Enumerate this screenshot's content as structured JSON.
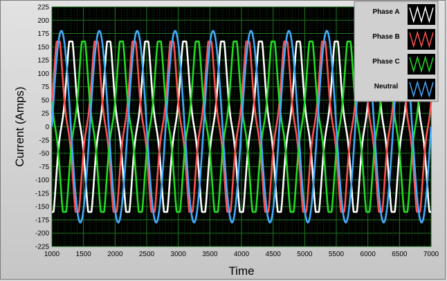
{
  "chart_data": {
    "type": "line",
    "title": "",
    "xlabel": "Time",
    "ylabel": "Current (Amps)",
    "xlim": [
      1000,
      7000
    ],
    "ylim": [
      -225,
      225
    ],
    "xticks": [
      1000,
      1500,
      2000,
      2500,
      3000,
      3500,
      4000,
      4500,
      5000,
      5500,
      6000,
      6500,
      7000
    ],
    "yticks": [
      -225,
      -200,
      -175,
      -150,
      -125,
      -100,
      -75,
      -50,
      -25,
      0,
      25,
      50,
      75,
      100,
      125,
      150,
      175,
      200,
      225
    ],
    "grid": true,
    "legend_position": "top-right",
    "background_color": "#000000",
    "grid_color": "#1f7a1f",
    "period": 600,
    "series": [
      {
        "name": "Phase A",
        "color": "#ffffff",
        "wave": "sine-with-3rd-harmonic",
        "fundamental_amplitude": 160,
        "third_harmonic_amplitude": 30,
        "x": [
          1000,
          1100,
          1150,
          1200,
          1250,
          1300,
          1400,
          1450,
          1500,
          1550,
          1600,
          1650,
          1700,
          1750,
          1800,
          1850,
          1900,
          1950,
          2000,
          2050,
          2100,
          2150,
          2200
        ],
        "y": [
          130,
          155,
          135,
          100,
          68,
          30,
          -80,
          -130,
          -160,
          -130,
          -100,
          -120,
          -160,
          -120,
          -40,
          60,
          130,
          155,
          130,
          100,
          68,
          -20,
          -100
        ]
      },
      {
        "name": "Phase B",
        "color": "#ff5050",
        "wave": "sine-with-3rd-harmonic",
        "fundamental_amplitude": 160,
        "third_harmonic_amplitude": 30,
        "x": [
          1000,
          1100,
          1150,
          1200,
          1300,
          1400,
          1500,
          1550,
          1600,
          1650,
          1700,
          1800
        ],
        "y": [
          -150,
          -100,
          -130,
          -160,
          -100,
          0,
          110,
          160,
          130,
          100,
          130,
          160
        ]
      },
      {
        "name": "Phase C",
        "color": "#22dd22",
        "wave": "sine-with-3rd-harmonic",
        "fundamental_amplitude": 160,
        "third_harmonic_amplitude": 30,
        "x": [
          1000,
          1050,
          1100,
          1200,
          1300,
          1350,
          1400,
          1500,
          1600
        ],
        "y": [
          -40,
          100,
          160,
          130,
          100,
          130,
          160,
          30,
          -120
        ]
      },
      {
        "name": "Neutral",
        "color": "#44aaff",
        "wave": "sine",
        "fundamental_amplitude": 180,
        "x": [
          1000,
          1050,
          1100,
          1150,
          1300,
          1450,
          1600,
          1750
        ],
        "y": [
          -45,
          60,
          150,
          180,
          0,
          -180,
          0,
          180
        ]
      }
    ]
  }
}
